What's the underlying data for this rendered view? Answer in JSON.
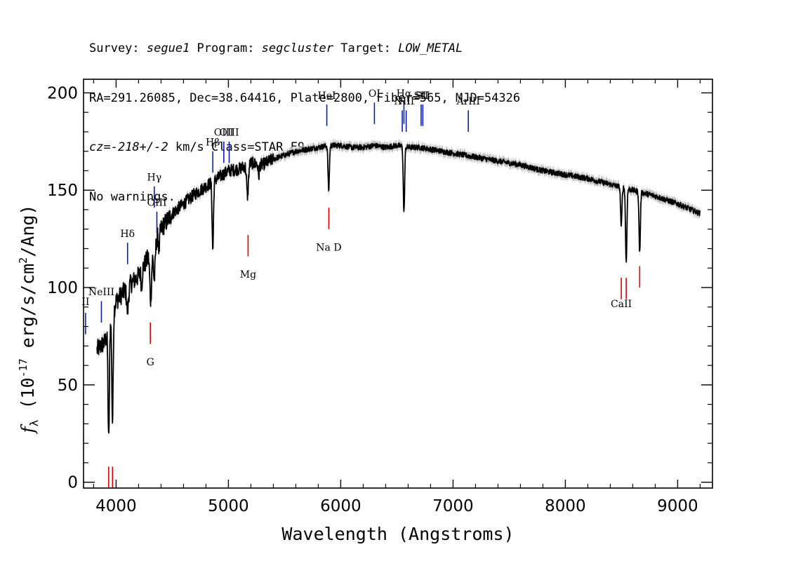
{
  "header": {
    "line1": {
      "survey_label": "Survey: ",
      "survey": "segue1",
      "program_label": " Program: ",
      "program": "segcluster",
      "target_label": " Target: ",
      "target": "LOW_METAL"
    },
    "line2": "RA=291.26085, Dec=38.64416, Plate=2800, Fiber=565, MJD=54326",
    "line3": {
      "cz_label": "cz=",
      "cz_value": "-218+/-2",
      "cz_units": " km/s Class=STAR F9"
    },
    "line4": "No warnings."
  },
  "chart_data": {
    "type": "line",
    "title": "",
    "xlabel": "Wavelength (Angstroms)",
    "ylabel": "f_λ (10^-17 erg/s/cm^2/Ang)",
    "xlim": [
      3710,
      9310
    ],
    "ylim": [
      -3,
      207
    ],
    "x_ticks": [
      4000,
      5000,
      6000,
      7000,
      8000,
      9000
    ],
    "y_ticks": [
      0,
      50,
      100,
      150,
      200
    ],
    "x_tick_labels": [
      "4000",
      "5000",
      "6000",
      "7000",
      "8000",
      "9000"
    ],
    "y_tick_labels": [
      "0",
      "50",
      "100",
      "150",
      "200"
    ],
    "spectrum_color": "#000000",
    "error_band_color": "#bbbbbb",
    "continuum": {
      "x": [
        3830,
        3900,
        4000,
        4100,
        4200,
        4300,
        4400,
        4500,
        4600,
        4700,
        4800,
        4900,
        5000,
        5100,
        5200,
        5300,
        5400,
        5500,
        5600,
        5700,
        5800,
        5900,
        6000,
        6100,
        6200,
        6300,
        6400,
        6500,
        6600,
        6700,
        6800,
        6900,
        7000,
        7200,
        7400,
        7600,
        7800,
        8000,
        8200,
        8400,
        8600,
        8800,
        9000,
        9200
      ],
      "y": [
        68,
        72,
        93,
        100,
        106,
        117,
        130,
        138,
        143,
        148,
        152,
        156,
        160,
        161,
        164,
        163,
        166,
        168,
        170,
        171,
        172,
        173,
        173,
        172,
        172,
        173,
        172,
        173,
        172,
        172,
        171,
        170,
        169,
        167,
        165,
        163,
        160,
        158,
        156,
        153,
        150,
        147,
        143,
        138
      ]
    },
    "absorption_lines": [
      {
        "x": 3934,
        "depth": 58,
        "width": 6
      },
      {
        "x": 3968,
        "depth": 55,
        "width": 6
      },
      {
        "x": 4102,
        "depth": 12,
        "width": 8
      },
      {
        "x": 4227,
        "depth": 8,
        "width": 5
      },
      {
        "x": 4308,
        "depth": 24,
        "width": 8
      },
      {
        "x": 4340,
        "depth": 18,
        "width": 8
      },
      {
        "x": 4383,
        "depth": 8,
        "width": 5
      },
      {
        "x": 4861,
        "depth": 35,
        "width": 6
      },
      {
        "x": 5170,
        "depth": 16,
        "width": 8
      },
      {
        "x": 5270,
        "depth": 6,
        "width": 5
      },
      {
        "x": 5893,
        "depth": 23,
        "width": 6
      },
      {
        "x": 6563,
        "depth": 34,
        "width": 6
      },
      {
        "x": 8498,
        "depth": 20,
        "width": 6
      },
      {
        "x": 8542,
        "depth": 38,
        "width": 6
      },
      {
        "x": 8662,
        "depth": 31,
        "width": 6
      }
    ],
    "emission_line_labels": [
      {
        "label": "II",
        "x": 3728,
        "tick_y": [
          76,
          87
        ],
        "text_y": 91
      },
      {
        "label": "NeIII",
        "x": 3869,
        "tick_y": [
          82,
          93
        ],
        "text_y": 96
      },
      {
        "label": "Hδ",
        "x": 4102,
        "tick_y": [
          112,
          123
        ],
        "text_y": 126
      },
      {
        "label": "Hγ",
        "x": 4340,
        "tick_y": [
          141,
          152
        ],
        "text_y": 155
      },
      {
        "label": "OIII",
        "x": 4363,
        "tick_y": [
          128,
          139
        ],
        "text_y": 142
      },
      {
        "label": "Hβ",
        "x": 4861,
        "tick_y": [
          159,
          170
        ],
        "text_y": 173
      },
      {
        "label": "OIII",
        "x": 4959,
        "tick_y": [
          164,
          175
        ],
        "text_y": 178
      },
      {
        "label": "OIII",
        "x": 5007,
        "tick_y": [
          164,
          175
        ],
        "text_y": 178
      },
      {
        "label": "HeI",
        "x": 5876,
        "tick_y": [
          183,
          194
        ],
        "text_y": 197
      },
      {
        "label": "OI",
        "x": 6300,
        "tick_y": [
          184,
          195
        ],
        "text_y": 198
      },
      {
        "label": "NII",
        "x": 6548,
        "tick_y": [
          180,
          191
        ],
        "text_y": 194
      },
      {
        "label": "Hα",
        "x": 6563,
        "tick_y": [
          184,
          195
        ],
        "text_y": 198
      },
      {
        "label": "NII",
        "x": 6583,
        "tick_y": [
          180,
          191
        ],
        "text_y": 194
      },
      {
        "label": "SII",
        "x": 6716,
        "tick_y": [
          183,
          194
        ],
        "text_y": 197
      },
      {
        "label": "SII",
        "x": 6731,
        "tick_y": [
          183,
          194
        ],
        "text_y": 197
      },
      {
        "label": "ArIII",
        "x": 7136,
        "tick_y": [
          180,
          191
        ],
        "text_y": 194
      }
    ],
    "absorption_line_labels": [
      {
        "label": "",
        "x": 3934,
        "tick_y": [
          -3,
          8
        ],
        "text_y": -10
      },
      {
        "label": "",
        "x": 3968,
        "tick_y": [
          -3,
          8
        ],
        "text_y": -10
      },
      {
        "label": "G",
        "x": 4305,
        "tick_y": [
          71,
          82
        ],
        "text_y": 60
      },
      {
        "label": "Mg",
        "x": 5175,
        "tick_y": [
          116,
          127
        ],
        "text_y": 105
      },
      {
        "label": "Na D",
        "x": 5894,
        "tick_y": [
          130,
          141
        ],
        "text_y": 119
      },
      {
        "label": "CaII",
        "x": 8498,
        "tick_y": [
          94,
          105
        ],
        "text_y": 90
      },
      {
        "label": "",
        "x": 8542,
        "tick_y": [
          94,
          105
        ],
        "text_y": 90
      },
      {
        "label": "",
        "x": 8662,
        "tick_y": [
          100,
          111
        ],
        "text_y": 90
      }
    ],
    "emission_color": "#0a1fb0",
    "absorption_color": "#dd0000"
  }
}
